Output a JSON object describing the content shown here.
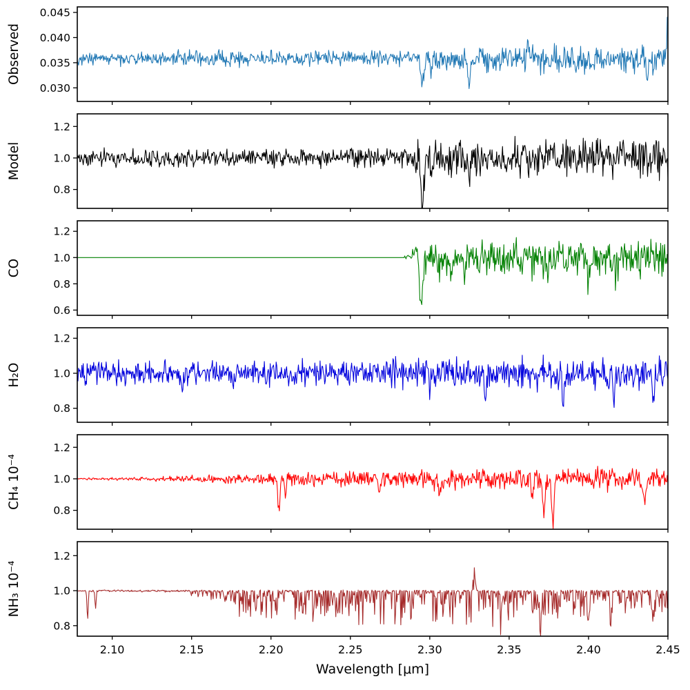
{
  "figure": {
    "title": "",
    "xlabel": "Wavelength [μm]"
  },
  "chart_data": {
    "type": "line",
    "title": "",
    "legend": "none",
    "grid": false,
    "x": {
      "label": "Wavelength [μm]",
      "lim": [
        2.078,
        2.45
      ],
      "ticks": [
        {
          "v": 2.1,
          "label": "2.10"
        },
        {
          "v": 2.15,
          "label": "2.15"
        },
        {
          "v": 2.2,
          "label": "2.20"
        },
        {
          "v": 2.25,
          "label": "2.25"
        },
        {
          "v": 2.3,
          "label": "2.30"
        },
        {
          "v": 2.35,
          "label": "2.35"
        },
        {
          "v": 2.4,
          "label": "2.40"
        },
        {
          "v": 2.45,
          "label": "2.45"
        }
      ]
    },
    "panels": [
      {
        "id": "observed",
        "ylabel": "Observed",
        "color": "#1f77b4",
        "ylim": [
          0.0273,
          0.0461
        ],
        "yticks": [
          {
            "v": 0.03,
            "label": "0.030"
          },
          {
            "v": 0.035,
            "label": "0.035"
          },
          {
            "v": 0.04,
            "label": "0.040"
          },
          {
            "v": 0.045,
            "label": "0.045"
          }
        ],
        "baseline": 0.0358,
        "mode": "symmetric",
        "noise_segments": [
          [
            2.078,
            2.2905,
            0.0011,
            0.0013
          ],
          [
            2.2905,
            2.45,
            0.0018,
            0.0024
          ]
        ],
        "features": [
          [
            2.2955,
            0.0055,
            0.0012
          ],
          [
            2.301,
            0.003,
            0.0008
          ],
          [
            2.325,
            0.0045,
            0.0009
          ],
          [
            2.392,
            0.0035,
            0.0008
          ],
          [
            2.437,
            0.0055,
            0.0009
          ],
          [
            2.4497,
            -0.009,
            0.0006
          ],
          [
            2.362,
            -0.003,
            0.0008
          ]
        ]
      },
      {
        "id": "model",
        "ylabel": "Model",
        "color": "#000000",
        "ylim": [
          0.68,
          1.28
        ],
        "yticks": [
          {
            "v": 0.8,
            "label": "0.8"
          },
          {
            "v": 1.0,
            "label": "1.0"
          },
          {
            "v": 1.2,
            "label": "1.2"
          }
        ],
        "baseline": 1.0,
        "mode": "symmetric",
        "noise_segments": [
          [
            2.078,
            2.2905,
            0.042,
            0.05
          ],
          [
            2.2905,
            2.45,
            0.085,
            0.102
          ]
        ],
        "features": [
          [
            2.2955,
            0.3,
            0.0013
          ],
          [
            2.301,
            0.1,
            0.0008
          ],
          [
            2.325,
            0.17,
            0.0009
          ]
        ]
      },
      {
        "id": "co",
        "ylabel": "CO",
        "color": "#008000",
        "ylim": [
          0.56,
          1.28
        ],
        "yticks": [
          {
            "v": 0.6,
            "label": "0.6"
          },
          {
            "v": 0.8,
            "label": "0.8"
          },
          {
            "v": 1.0,
            "label": "1.0"
          },
          {
            "v": 1.2,
            "label": "1.2"
          }
        ],
        "baseline": 1.0,
        "mode": "symmetric",
        "noise_segments": [
          [
            2.078,
            2.2835,
            0.0,
            0.0
          ],
          [
            2.2835,
            2.2955,
            0.01,
            0.05
          ],
          [
            2.2955,
            2.335,
            0.1,
            0.11
          ],
          [
            2.335,
            2.45,
            0.11,
            0.12
          ]
        ],
        "features": [
          [
            2.2915,
            -0.065,
            0.0022
          ],
          [
            2.2945,
            0.38,
            0.0014
          ],
          [
            2.306,
            0.1,
            0.0008
          ],
          [
            2.3135,
            0.13,
            0.0008
          ],
          [
            2.322,
            0.17,
            0.0009
          ],
          [
            2.3305,
            0.12,
            0.0008
          ],
          [
            2.345,
            0.15,
            0.0009
          ],
          [
            2.3585,
            0.12,
            0.0008
          ],
          [
            2.374,
            0.12,
            0.0008
          ],
          [
            2.4,
            0.14,
            0.0009
          ],
          [
            2.417,
            0.11,
            0.0008
          ],
          [
            2.4325,
            0.12,
            0.0008
          ]
        ]
      },
      {
        "id": "h2o",
        "ylabel": "H₂O",
        "color": "#0000dd",
        "ylim": [
          0.72,
          1.26
        ],
        "yticks": [
          {
            "v": 0.8,
            "label": "0.8"
          },
          {
            "v": 1.0,
            "label": "1.0"
          },
          {
            "v": 1.2,
            "label": "1.2"
          }
        ],
        "baseline": 1.0,
        "mode": "symmetric",
        "noise_segments": [
          [
            2.078,
            2.45,
            0.052,
            0.075
          ]
        ],
        "features": [
          [
            2.083,
            0.12,
            0.0006
          ],
          [
            2.144,
            0.1,
            0.0006
          ],
          [
            2.3,
            0.12,
            0.0007
          ],
          [
            2.335,
            0.16,
            0.0007
          ],
          [
            2.3555,
            0.13,
            0.0006
          ],
          [
            2.384,
            0.18,
            0.0007
          ],
          [
            2.416,
            0.14,
            0.0007
          ],
          [
            2.4405,
            0.2,
            0.0008
          ]
        ]
      },
      {
        "id": "ch4",
        "ylabel": "CH₄ 10⁻⁴",
        "color": "#ff0000",
        "ylim": [
          0.68,
          1.28
        ],
        "yticks": [
          {
            "v": 0.8,
            "label": "0.8"
          },
          {
            "v": 1.0,
            "label": "1.0"
          },
          {
            "v": 1.2,
            "label": "1.2"
          }
        ],
        "baseline": 1.0,
        "mode": "symmetric",
        "noise_segments": [
          [
            2.078,
            2.125,
            0.004,
            0.009
          ],
          [
            2.125,
            2.205,
            0.012,
            0.032
          ],
          [
            2.205,
            2.31,
            0.034,
            0.046
          ],
          [
            2.31,
            2.45,
            0.047,
            0.058
          ]
        ],
        "features": [
          [
            2.205,
            0.2,
            0.0009
          ],
          [
            2.209,
            0.12,
            0.0007
          ],
          [
            2.268,
            0.08,
            0.0008
          ],
          [
            2.306,
            0.1,
            0.0008
          ],
          [
            2.3645,
            0.12,
            0.0009
          ],
          [
            2.372,
            0.2,
            0.0012
          ],
          [
            2.3775,
            0.27,
            0.0012
          ],
          [
            2.435,
            0.14,
            0.0009
          ]
        ]
      },
      {
        "id": "nh3",
        "ylabel": "NH₃ 10⁻⁴",
        "color": "#a52a2a",
        "ylim": [
          0.74,
          1.28
        ],
        "yticks": [
          {
            "v": 0.8,
            "label": "0.8"
          },
          {
            "v": 1.0,
            "label": "1.0"
          },
          {
            "v": 1.2,
            "label": "1.2"
          }
        ],
        "baseline": 1.0,
        "mode": "absorption",
        "noise_segments": [
          [
            2.078,
            2.148,
            0.004,
            0.006
          ],
          [
            2.148,
            2.178,
            0.02,
            0.11
          ],
          [
            2.178,
            2.26,
            0.15,
            0.2
          ],
          [
            2.26,
            2.345,
            0.2,
            0.21
          ],
          [
            2.345,
            2.405,
            0.19,
            0.15
          ],
          [
            2.405,
            2.45,
            0.14,
            0.12
          ]
        ],
        "features": [
          [
            2.0845,
            0.17,
            0.0005
          ],
          [
            2.0895,
            0.1,
            0.0005
          ],
          [
            2.328,
            -0.13,
            0.0009
          ],
          [
            2.345,
            0.12,
            0.0006
          ],
          [
            2.37,
            0.14,
            0.0007
          ],
          [
            2.4,
            0.16,
            0.0007
          ],
          [
            2.414,
            0.15,
            0.0006
          ],
          [
            2.4405,
            0.16,
            0.0007
          ]
        ]
      }
    ]
  }
}
